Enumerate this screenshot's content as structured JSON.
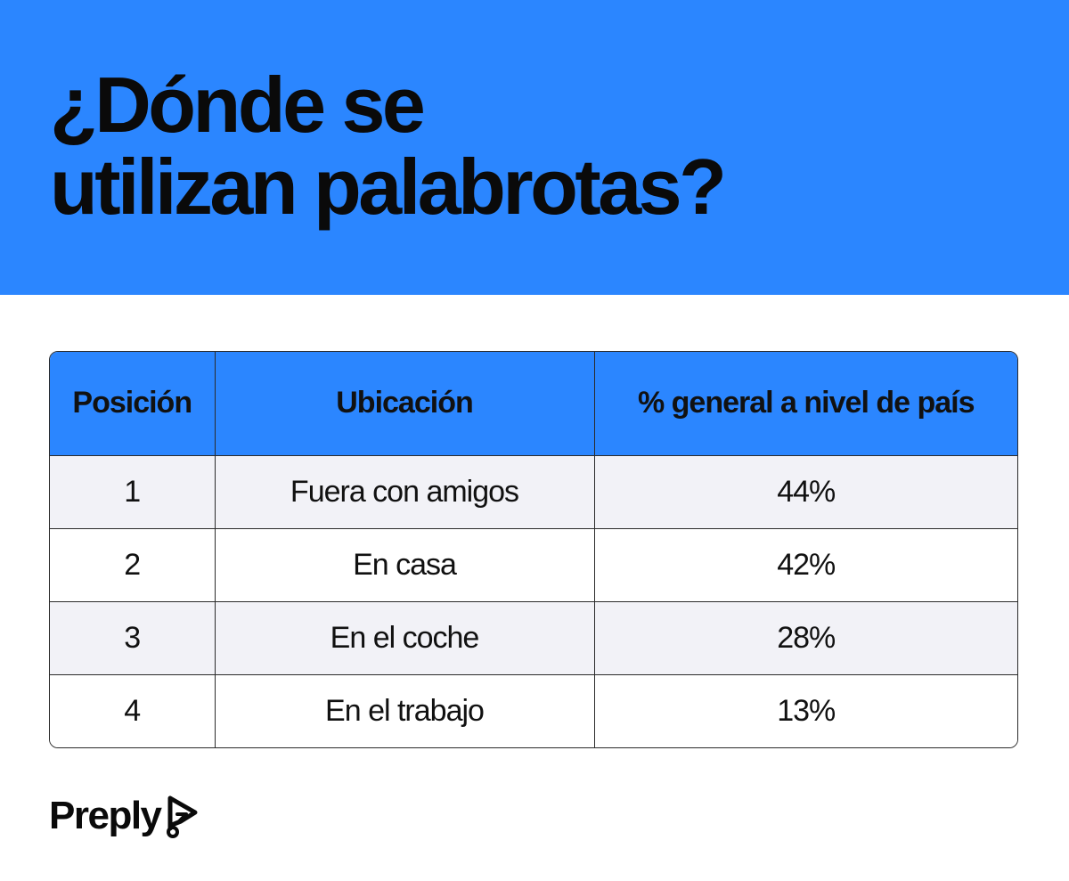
{
  "title": {
    "line1": "¿Dónde se",
    "line2": "utilizan palabrotas?"
  },
  "chart_data": {
    "type": "table",
    "columns": [
      "Posición",
      "Ubicación",
      "% general a nivel de país"
    ],
    "rows": [
      {
        "position": "1",
        "location": "Fuera con amigos",
        "percent": "44%"
      },
      {
        "position": "2",
        "location": "En casa",
        "percent": "42%"
      },
      {
        "position": "3",
        "location": "En el coche",
        "percent": "28%"
      },
      {
        "position": "4",
        "location": "En el trabajo",
        "percent": "13%"
      }
    ]
  },
  "brand": {
    "name": "Preply",
    "icon": "preply-logo-icon",
    "accent_color": "#2b86ff"
  }
}
